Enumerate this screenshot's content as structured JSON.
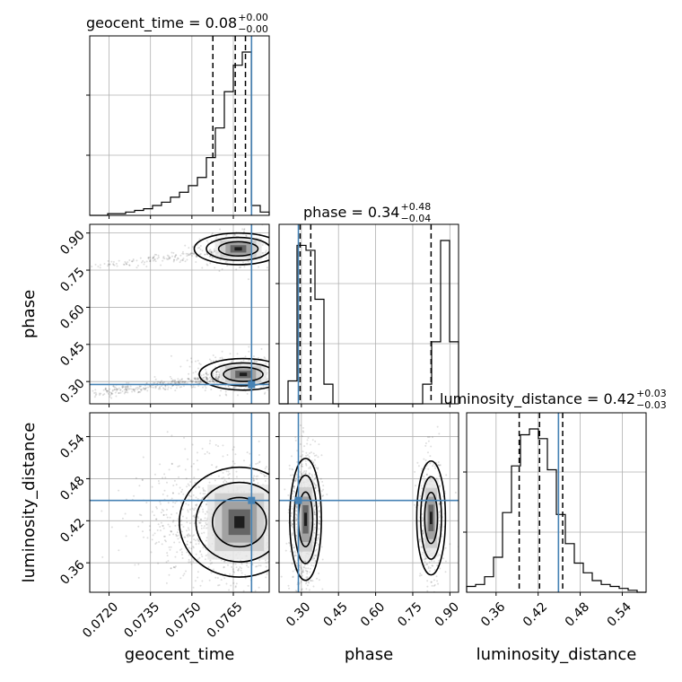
{
  "chart_data": {
    "type": "corner",
    "parameters": [
      "geocent_time",
      "phase",
      "luminosity_distance"
    ],
    "titles": [
      {
        "name": "geocent_time",
        "median": "0.08",
        "plus": "+0.00",
        "minus": "−0.00"
      },
      {
        "name": "phase",
        "median": "0.34",
        "plus": "+0.48",
        "minus": "−0.04"
      },
      {
        "name": "luminosity_distance",
        "median": "0.42",
        "plus": "+0.03",
        "minus": "−0.03"
      }
    ],
    "ranges": {
      "geocent_time": [
        0.0713,
        0.0778
      ],
      "phase": [
        0.21,
        0.935
      ],
      "luminosity_distance": [
        0.318,
        0.574
      ]
    },
    "ticks": {
      "geocent_time": {
        "values": [
          0.072,
          0.0735,
          0.075,
          0.0765
        ],
        "labels": [
          "0.0720",
          "0.0735",
          "0.0750",
          "0.0765"
        ]
      },
      "phase": {
        "values": [
          0.3,
          0.45,
          0.6,
          0.75,
          0.9
        ],
        "labels": [
          "0.30",
          "0.45",
          "0.60",
          "0.75",
          "0.90"
        ]
      },
      "luminosity_distance": {
        "values": [
          0.36,
          0.42,
          0.48,
          0.54
        ],
        "labels": [
          "0.36",
          "0.42",
          "0.48",
          "0.54"
        ]
      }
    },
    "truths": {
      "geocent_time": 0.07716,
      "phase": 0.288,
      "luminosity_distance": 0.449
    },
    "quantiles": {
      "geocent_time": [
        0.07576,
        0.07657,
        0.07694
      ],
      "phase": [
        0.295,
        0.338,
        0.824
      ],
      "luminosity_distance": [
        0.393,
        0.422,
        0.455
      ]
    },
    "histograms": {
      "geocent_time": {
        "edges_from": 0.0713,
        "bin_width": 0.000325,
        "counts": [
          0,
          0,
          1,
          1,
          2,
          3,
          4,
          6,
          8,
          11,
          14,
          18,
          23,
          35,
          53,
          75,
          91,
          99,
          6,
          2
        ]
      },
      "phase": {
        "edges_from": 0.21,
        "bin_width": 0.03625,
        "counts": [
          0,
          14,
          97,
          94,
          64,
          12,
          0,
          0,
          0,
          0,
          0,
          0,
          0,
          0,
          0,
          0,
          12,
          38,
          100,
          38
        ]
      },
      "luminosity_distance": {
        "edges_from": 0.318,
        "bin_width": 0.0128,
        "counts": [
          3,
          4,
          8,
          18,
          41,
          65,
          81,
          84,
          79,
          63,
          40,
          25,
          15,
          10,
          6,
          4,
          3,
          2,
          1,
          0
        ]
      }
    },
    "modes_2d": {
      "phase_vs_geocent_time": [
        {
          "x": 0.07686,
          "y": 0.329,
          "sx": 0.00055,
          "sy": 0.022,
          "weight": 0.68
        },
        {
          "x": 0.07668,
          "y": 0.836,
          "sx": 0.00055,
          "sy": 0.022,
          "weight": 0.32
        }
      ],
      "luminosity_distance_vs_geocent_time": [
        {
          "x": 0.07672,
          "y": 0.418,
          "sx": 0.00075,
          "sy": 0.027
        }
      ],
      "luminosity_distance_vs_phase": [
        {
          "x": 0.317,
          "y": 0.422,
          "sx": 0.022,
          "sy": 0.03,
          "weight": 0.68
        },
        {
          "x": 0.824,
          "y": 0.424,
          "sx": 0.02,
          "sy": 0.028,
          "weight": 0.32
        }
      ]
    },
    "axis_labels": {
      "x": [
        "geocent_time",
        "phase",
        "luminosity_distance"
      ],
      "y": [
        "phase",
        "luminosity_distance"
      ]
    },
    "colors": {
      "truth": "#4682b4",
      "hist": "#000000",
      "grid": "#b0b0b0",
      "points": "#000000"
    }
  }
}
